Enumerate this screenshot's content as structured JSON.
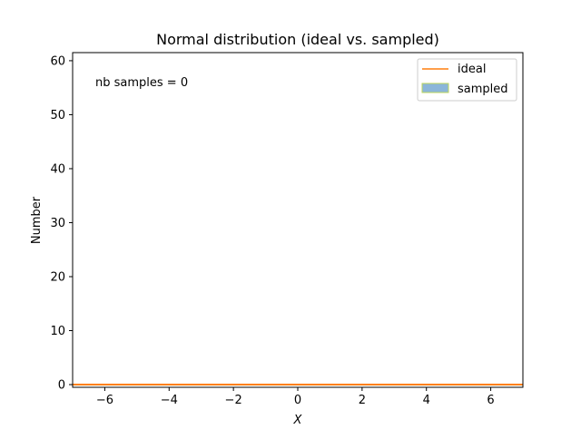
{
  "chart_data": {
    "type": "line",
    "title": "Normal distribution (ideal vs. sampled)",
    "xlabel": "X",
    "ylabel": "Number",
    "xlim": [
      -7,
      7
    ],
    "ylim": [
      -0.5,
      61.5
    ],
    "xticks": [
      -6,
      -4,
      -2,
      0,
      2,
      4,
      6
    ],
    "xtick_labels": [
      "−6",
      "−4",
      "−2",
      "0",
      "2",
      "4",
      "6"
    ],
    "yticks": [
      0,
      10,
      20,
      30,
      40,
      50,
      60
    ],
    "ytick_labels": [
      "0",
      "10",
      "20",
      "30",
      "40",
      "50",
      "60"
    ],
    "grid": false,
    "legend_position": "top-right",
    "annotation": "nb samples = 0",
    "series": [
      {
        "name": "ideal",
        "kind": "line",
        "color": "#ff7f0e",
        "x": [
          -7,
          7
        ],
        "y": [
          0,
          0
        ]
      },
      {
        "name": "sampled",
        "kind": "histogram",
        "color": "#8bb6d9",
        "edge_color": "#bcd65a",
        "x": [],
        "y": []
      }
    ]
  }
}
